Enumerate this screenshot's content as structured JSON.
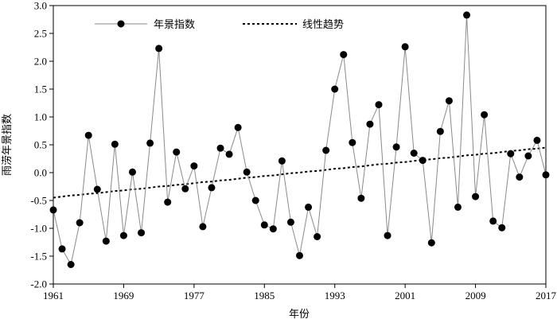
{
  "chart_data": {
    "type": "line",
    "xlabel": "年份",
    "ylabel": "雨涝年景指数",
    "xlim": [
      1961,
      2017
    ],
    "ylim": [
      -2.0,
      3.0
    ],
    "xticks": [
      "1961",
      "1969",
      "1977",
      "1985",
      "1993",
      "2001",
      "2009",
      "2017"
    ],
    "yticks": [
      "-2.0",
      "-1.5",
      "-1.0",
      "-0.5",
      "0.0",
      "0.5",
      "1.0",
      "1.5",
      "2.0",
      "2.5",
      "3.0"
    ],
    "legend": {
      "position": "top-left"
    },
    "x": [
      1961,
      1962,
      1963,
      1964,
      1965,
      1966,
      1967,
      1968,
      1969,
      1970,
      1971,
      1972,
      1973,
      1974,
      1975,
      1976,
      1977,
      1978,
      1979,
      1980,
      1981,
      1982,
      1983,
      1984,
      1985,
      1986,
      1987,
      1988,
      1989,
      1990,
      1991,
      1992,
      1993,
      1994,
      1995,
      1996,
      1997,
      1998,
      1999,
      2000,
      2001,
      2002,
      2003,
      2004,
      2005,
      2006,
      2007,
      2008,
      2009,
      2010,
      2011,
      2012,
      2013,
      2014,
      2015,
      2016,
      2017
    ],
    "series": [
      {
        "name": "年景指数",
        "style": "line-with-markers",
        "color": "#8a8a8a",
        "marker_color": "#000000",
        "values": [
          -0.67,
          -1.37,
          -1.65,
          -0.9,
          0.67,
          -0.3,
          -1.23,
          0.51,
          -1.13,
          0.01,
          -1.08,
          0.53,
          2.23,
          -0.53,
          0.37,
          -0.29,
          0.12,
          -0.97,
          -0.27,
          0.44,
          0.33,
          0.81,
          0.01,
          -0.5,
          -0.94,
          -1.01,
          0.21,
          -0.89,
          -1.49,
          -0.62,
          -1.15,
          0.4,
          1.5,
          2.12,
          0.54,
          -0.46,
          0.87,
          1.22,
          -1.13,
          0.46,
          2.26,
          0.35,
          0.22,
          -1.26,
          0.74,
          1.29,
          -0.62,
          2.83,
          -0.43,
          1.04,
          -0.87,
          -0.99,
          0.34,
          -0.08,
          0.3,
          0.58,
          -0.04
        ]
      },
      {
        "name": "线性趋势",
        "style": "dotted",
        "color": "#000000",
        "values": [
          -0.45,
          -0.43,
          -0.41,
          -0.4,
          -0.38,
          -0.37,
          -0.35,
          -0.33,
          -0.32,
          -0.3,
          -0.29,
          -0.27,
          -0.25,
          -0.24,
          -0.22,
          -0.21,
          -0.19,
          -0.17,
          -0.16,
          -0.14,
          -0.13,
          -0.11,
          -0.09,
          -0.08,
          -0.06,
          -0.05,
          -0.03,
          -0.01,
          0.0,
          0.02,
          0.03,
          0.05,
          0.07,
          0.08,
          0.1,
          0.11,
          0.13,
          0.15,
          0.16,
          0.18,
          0.19,
          0.21,
          0.23,
          0.24,
          0.26,
          0.27,
          0.29,
          0.31,
          0.32,
          0.34,
          0.35,
          0.37,
          0.39,
          0.4,
          0.42,
          0.43,
          0.45
        ]
      }
    ]
  }
}
